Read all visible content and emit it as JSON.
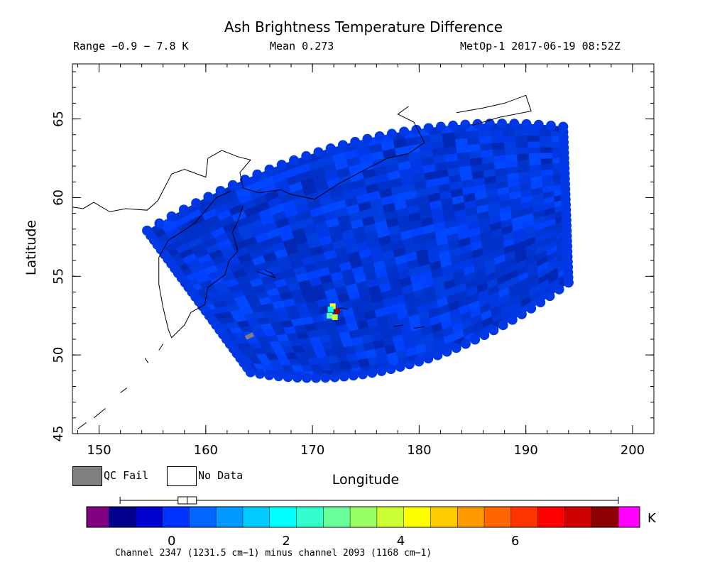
{
  "header": {
    "title": "Ash Brightness Temperature Difference",
    "range": "Range −0.9 − 7.8 K",
    "mean": "Mean 0.273",
    "instrument": "MetOp-1 2017-06-19 08:52Z"
  },
  "legend": {
    "qc_fail": {
      "label": "QC Fail",
      "color": "#7f7f7f"
    },
    "no_data": {
      "label": "No Data",
      "color": "#ffffff"
    }
  },
  "colorbar": {
    "unit": "K",
    "caption": "Channel 2347 (1231.5 cm−1) minus channel 2093 (1168 cm−1)",
    "ticks": [
      "0",
      "2",
      "4",
      "6"
    ],
    "under_color": "#800080",
    "over_color": "#ff00ff",
    "range": [
      -0.9,
      7.8
    ],
    "mean": 0.273,
    "colors": [
      "#00008b",
      "#0000cd",
      "#0033ff",
      "#0066ff",
      "#0099ff",
      "#00ccff",
      "#00ffff",
      "#33ffcc",
      "#66ff99",
      "#99ff66",
      "#ccff33",
      "#ffff00",
      "#ffcc00",
      "#ff9900",
      "#ff6600",
      "#ff3300",
      "#ff0000",
      "#cc0000",
      "#8b0000"
    ]
  },
  "chart_data": {
    "type": "heatmap",
    "title": "Ash Brightness Temperature Difference",
    "xlabel": "Longitude",
    "ylabel": "Latitude",
    "xlim": [
      147.5,
      202
    ],
    "ylim": [
      45,
      68.5
    ],
    "x_ticks": [
      "150",
      "160",
      "170",
      "180",
      "190",
      "200"
    ],
    "y_ticks": [
      "45",
      "50",
      "55",
      "60",
      "65"
    ],
    "swath_corners": {
      "lon": [
        154.5,
        193.5,
        194,
        164.2
      ],
      "lat": [
        57.9,
        64.5,
        54.6,
        48.9
      ]
    },
    "background_value": 0.2,
    "hotspot": {
      "lon": 172.3,
      "lat": 52.7,
      "points": [
        {
          "lon": 172.3,
          "lat": 52.8,
          "value": 7.5
        },
        {
          "lon": 171.9,
          "lat": 53.1,
          "value": 4.4
        },
        {
          "lon": 171.6,
          "lat": 52.5,
          "value": 2.8
        },
        {
          "lon": 172.1,
          "lat": 52.4,
          "value": 3.9
        },
        {
          "lon": 171.7,
          "lat": 52.9,
          "value": 1.8
        }
      ]
    },
    "qc_fail_cells": [
      {
        "lon": 164.1,
        "lat": 51.2
      }
    ]
  }
}
